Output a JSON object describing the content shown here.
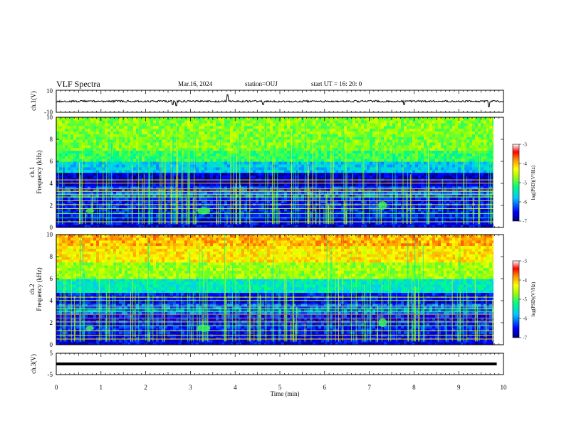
{
  "header": {
    "title": "VLF Spectra",
    "date": "Mar.16, 2024",
    "station": "station=OUJ",
    "start": "start  UT =   16: 20: 0"
  },
  "chart_data": [
    {
      "type": "line",
      "panel": "ch1-waveform",
      "ylabel": "ch.1(V)",
      "yticks": [
        "10",
        "-10"
      ],
      "ylim": [
        -10,
        10
      ],
      "xlim": [
        0,
        10
      ],
      "baseline": 0,
      "spikes": [
        {
          "x": 2.6,
          "y": -3
        },
        {
          "x": 2.68,
          "y": -4
        },
        {
          "x": 3.83,
          "y": 6
        },
        {
          "x": 4.63,
          "y": -3
        },
        {
          "x": 7.78,
          "y": -3
        },
        {
          "x": 9.68,
          "y": -5
        }
      ]
    },
    {
      "type": "heatmap",
      "panel": "ch1-spectrogram",
      "ylabel": "ch.1\nFrequency (kHz)",
      "ylabel_line1": "ch.1",
      "ylabel_line2": "Frequency (kHz)",
      "yticks": [
        "0",
        "2",
        "4",
        "6",
        "8",
        "10"
      ],
      "ylim": [
        0,
        10
      ],
      "xlim": [
        0,
        9.85
      ],
      "colorbar": {
        "label": "log(PSD)(V²/Hz)",
        "ticks": [
          "-3",
          "-4",
          "-5",
          "-6",
          "-7"
        ],
        "range": [
          -7,
          -3
        ]
      }
    },
    {
      "type": "heatmap",
      "panel": "ch2-spectrogram",
      "ylabel": "ch.2\nFrequency (kHz)",
      "ylabel_line1": "ch.2",
      "ylabel_line2": "Frequency (kHz)",
      "yticks": [
        "0",
        "2",
        "4",
        "6",
        "8",
        "10"
      ],
      "ylim": [
        0,
        10
      ],
      "xlim": [
        0,
        9.85
      ],
      "colorbar": {
        "label": "log(PSD)(V²/Hz)",
        "ticks": [
          "-3",
          "-4",
          "-5",
          "-6",
          "-7"
        ],
        "range": [
          -7,
          -3
        ]
      }
    },
    {
      "type": "line",
      "panel": "ch3-waveform",
      "ylabel": "ch.3(V)",
      "yticks": [
        "5",
        "0",
        "-5"
      ],
      "ylim": [
        -5,
        5
      ],
      "xlim": [
        0,
        9.85
      ],
      "value": 0
    }
  ],
  "xaxis": {
    "label": "Time (min)",
    "ticks": [
      "0",
      "1",
      "2",
      "3",
      "4",
      "5",
      "6",
      "7",
      "8",
      "9",
      "10"
    ],
    "range": [
      0,
      10
    ]
  },
  "colors": {
    "cmap": [
      "#00007a",
      "#0000ff",
      "#00c8ff",
      "#00ff80",
      "#a0ff00",
      "#ffff00",
      "#ff9000",
      "#ff0000",
      "#ffffff"
    ]
  }
}
